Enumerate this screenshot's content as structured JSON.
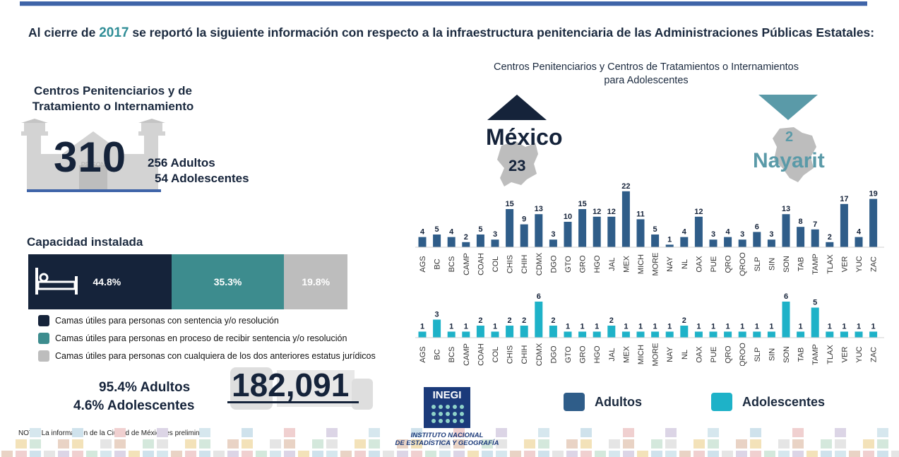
{
  "headline": {
    "prefix": "Al cierre de",
    "year": "2017",
    "suffix": "se reportó la siguiente información con respecto a la infraestructura penitenciaria de las Administraciones Públicas Estatales:"
  },
  "centros": {
    "title_line1": "Centros Penitenciarios y de",
    "title_line2": "Tratamiento o Internamiento",
    "total": "310",
    "adultos": "256 Adultos",
    "adolescentes": "54 Adolescentes",
    "sign_text": "PRISON",
    "icon": "prison-building-icon"
  },
  "capacidad": {
    "title": "Capacidad instalada",
    "segments": [
      {
        "label": "44.8%",
        "value": 44.8,
        "color": "#15233a"
      },
      {
        "label": "35.3%",
        "value": 35.3,
        "color": "#3d8c8e"
      },
      {
        "label": "19.8%",
        "value": 19.8,
        "color": "#bdbdbd"
      }
    ],
    "legend": [
      "Camas útiles para personas con sentencia y/o resolución",
      "Camas útiles para personas en proceso de recibir sentencia y/o resolución",
      "Camas útiles para personas con cualquiera de los dos anteriores estatus jurídicos"
    ],
    "pct_adultos": "95.4% Adultos",
    "pct_adolescentes": "4.6% Adolescentes",
    "total_camas": "182,091",
    "icon": "bed-icon"
  },
  "nota": "NOTA: La información de la Ciudad de México es preliminar.",
  "chart_title_line1": "Centros Penitenciarios y Centros de Tratamientos o Internamientos",
  "chart_title_line2": "para Adolescentes",
  "highlights": {
    "max_state": "México",
    "max_value": "23",
    "min_value": "2",
    "min_state": "Nayarit"
  },
  "legend2": {
    "adultos": "Adultos",
    "adolescentes": "Adolescentes"
  },
  "colors": {
    "adultos": "#2f5d89",
    "adolescentes": "#1eb2c8",
    "dark": "#15233a",
    "teal": "#3d8c8e",
    "gray": "#bdbdbd"
  },
  "logo": {
    "name": "INEGI",
    "line1": "INSTITUTO NACIONAL",
    "line2": "DE ESTADÍSTICA Y GEOGRAFÍA"
  },
  "chart_data": {
    "type": "bar",
    "categories": [
      "AGS",
      "BC",
      "BCS",
      "CAMP",
      "COAH",
      "COL",
      "CHIS",
      "CHIH",
      "CDMX",
      "DGO",
      "GTO",
      "GRO",
      "HGO",
      "JAL",
      "MEX",
      "MICH",
      "MORE",
      "NAY",
      "NL",
      "OAX",
      "PUE",
      "QRO",
      "QROO",
      "SLP",
      "SIN",
      "SON",
      "TAB",
      "TAMP",
      "TLAX",
      "VER",
      "YUC",
      "ZAC"
    ],
    "series": [
      {
        "name": "Adultos",
        "values": [
          4,
          5,
          4,
          2,
          5,
          3,
          15,
          9,
          13,
          3,
          10,
          15,
          12,
          12,
          22,
          11,
          5,
          1,
          4,
          12,
          3,
          4,
          3,
          6,
          3,
          13,
          8,
          7,
          2,
          17,
          4,
          19
        ]
      },
      {
        "name": "Adolescentes",
        "values": [
          1,
          3,
          1,
          1,
          2,
          1,
          2,
          2,
          6,
          2,
          1,
          1,
          1,
          2,
          1,
          1,
          1,
          1,
          2,
          1,
          1,
          1,
          1,
          1,
          1,
          6,
          1,
          5,
          1,
          1,
          1,
          1
        ]
      }
    ],
    "title": "Centros Penitenciarios y Centros de Tratamientos o Internamientos para Adolescentes"
  }
}
